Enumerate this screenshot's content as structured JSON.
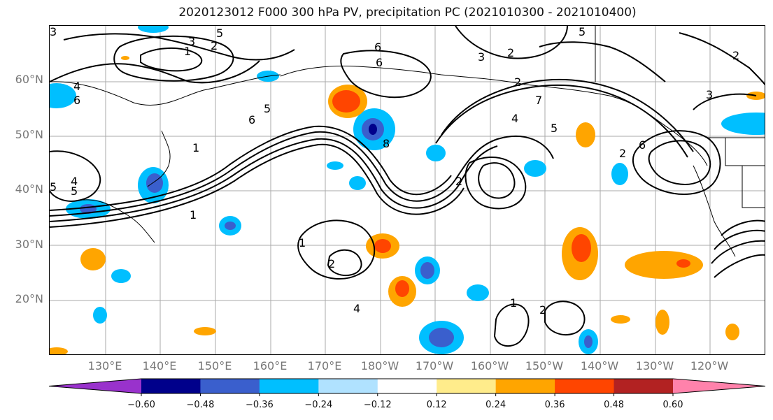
{
  "title": "2020123012 F000 300 hPa PV, precipitation PC (2021010300 - 2021010400)",
  "map": {
    "lat_labels": [
      "60°N",
      "50°N",
      "40°N",
      "30°N",
      "20°N"
    ],
    "lon_labels": [
      "130°E",
      "140°E",
      "150°E",
      "160°E",
      "170°E",
      "180°W",
      "170°W",
      "160°W",
      "150°W",
      "140°W",
      "130°W",
      "120°W"
    ],
    "contour_labels": [
      "5",
      "5",
      "3",
      "2",
      "1",
      "6",
      "2",
      "3",
      "2",
      "4",
      "6",
      "5",
      "6",
      "1",
      "2",
      "3",
      "7",
      "5",
      "4",
      "8",
      "4",
      "5",
      "1",
      "2",
      "1",
      "2",
      "1",
      "2",
      "6",
      "2",
      "4",
      "3",
      "5",
      "6"
    ],
    "pv_contour_color": "#000000",
    "coastline_color": "#000000",
    "grid_color": "#aaaaaa"
  },
  "colorbar": {
    "tick_labels": [
      "−0.60",
      "−0.48",
      "−0.36",
      "−0.24",
      "−0.12",
      "0.12",
      "0.24",
      "0.36",
      "0.48",
      "0.60"
    ],
    "levels": [
      -0.6,
      -0.48,
      -0.36,
      -0.24,
      -0.12,
      0.12,
      0.24,
      0.36,
      0.48,
      0.6
    ],
    "colors": [
      "#9932cc",
      "#00008b",
      "#3a5fcd",
      "#00bfff",
      "#b0e2ff",
      "#ffffff",
      "#ffec8b",
      "#ffa500",
      "#ff4500",
      "#b22222",
      "#ff82ab"
    ]
  }
}
